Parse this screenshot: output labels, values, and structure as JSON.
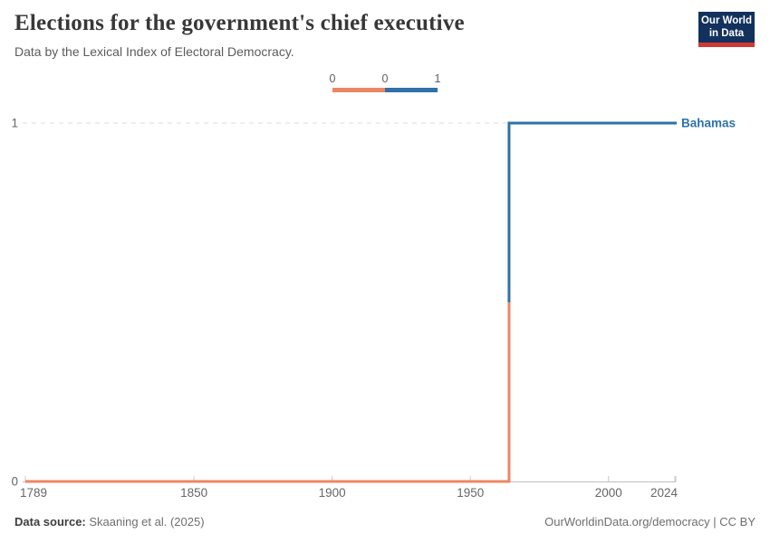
{
  "logo": {
    "line1": "Our World",
    "line2": "in Data",
    "bg_color": "#12315d",
    "accent_color": "#cf3934"
  },
  "chart_data": {
    "type": "line",
    "step": true,
    "title": "Elections for the government's chief executive",
    "subtitle": "Data by the Lexical Index of Electoral Democracy.",
    "xlabel": "",
    "ylabel": "",
    "xlim": [
      1789,
      2024
    ],
    "ylim": [
      0,
      1
    ],
    "x_ticks": [
      1789,
      1850,
      1900,
      1950,
      2000,
      2024
    ],
    "y_ticks": [
      0,
      1
    ],
    "grid": "dashed gridline at y=1 only; solid baseline at y=0",
    "legend": {
      "position": "top-center",
      "edge_labels": [
        "0",
        "0",
        "1"
      ],
      "bins": [
        {
          "value": 0,
          "color": "#ED8663"
        },
        {
          "value": 1,
          "color": "#2E72A8"
        }
      ]
    },
    "series": [
      {
        "name": "Bahamas",
        "label_color": "#2E72A8",
        "points": [
          [
            1789,
            0
          ],
          [
            1963,
            0
          ],
          [
            1964,
            1
          ],
          [
            2024,
            1
          ]
        ]
      }
    ],
    "axis_text_color": "#666666"
  },
  "footer": {
    "source_label": "Data source:",
    "source_value": " Skaaning et al. (2025)",
    "rights": "OurWorldinData.org/democracy | CC BY"
  }
}
